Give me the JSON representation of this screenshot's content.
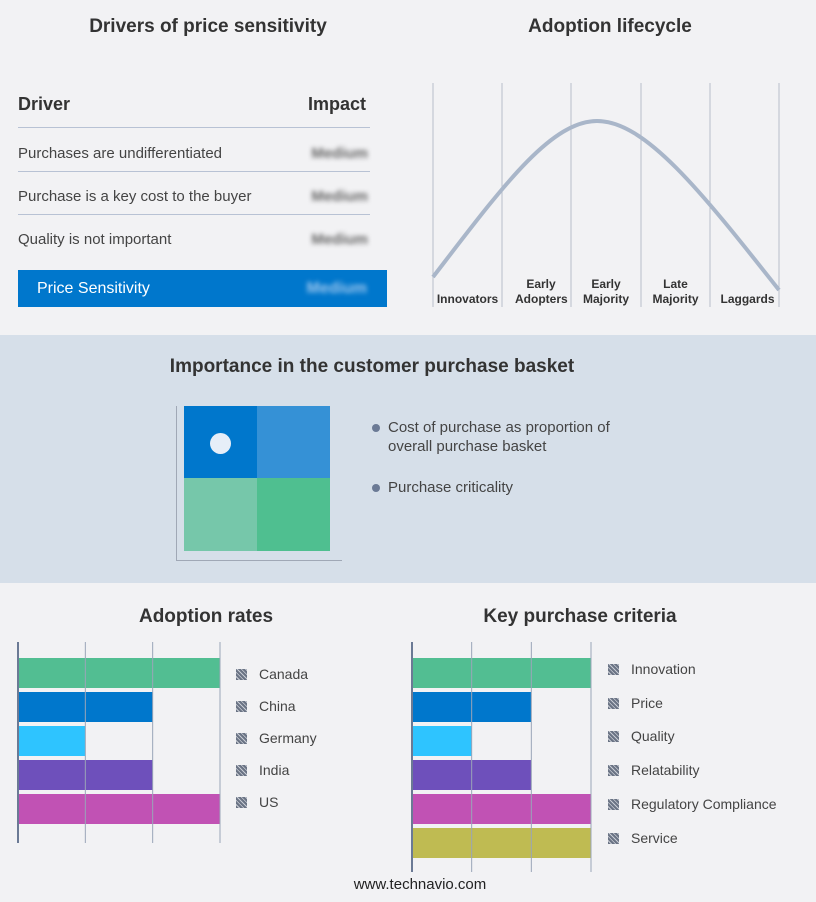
{
  "drivers": {
    "title": "Drivers of price sensitivity",
    "col_driver": "Driver",
    "col_impact": "Impact",
    "rows": [
      {
        "driver": "Purchases are undifferentiated",
        "impact": "Medium"
      },
      {
        "driver": "Purchase is a key cost to the buyer",
        "impact": "Medium"
      },
      {
        "driver": "Quality is not important",
        "impact": "Medium"
      }
    ],
    "summary": {
      "label": "Price Sensitivity",
      "impact": "Medium"
    },
    "accent": "#0077cc"
  },
  "lifecycle": {
    "title": "Adoption lifecycle",
    "stages": [
      "Innovators",
      "Early Adopters",
      "Early Majority",
      "Late Majority",
      "Laggards"
    ],
    "curve_color": "#a9b6c9"
  },
  "basket": {
    "title": "Importance in the customer purchase basket",
    "legend": [
      "Cost of purchase as proportion of overall purchase basket",
      "Purchase criticality"
    ],
    "colors": [
      "#0077cc",
      "#3591d6",
      "#76c7aa",
      "#4fbf90"
    ]
  },
  "chart_data": [
    {
      "type": "bar",
      "title": "Adoption rates",
      "categories": [
        "Canada",
        "China",
        "Germany",
        "India",
        "US"
      ],
      "values": [
        3,
        2,
        1,
        2,
        3
      ],
      "xlim": [
        0,
        3
      ],
      "grid": true,
      "legend": "right",
      "colors": [
        "#52be92",
        "#0077cc",
        "#2ec4ff",
        "#6e50bb",
        "#c152b4"
      ]
    },
    {
      "type": "bar",
      "title": "Key purchase criteria",
      "categories": [
        "Innovation",
        "Price",
        "Quality",
        "Relatability",
        "Regulatory Compliance",
        "Service"
      ],
      "values": [
        3,
        2,
        1,
        2,
        3,
        3
      ],
      "xlim": [
        0,
        3
      ],
      "grid": true,
      "legend": "right",
      "colors": [
        "#52be92",
        "#0077cc",
        "#2ec4ff",
        "#6e50bb",
        "#c152b4",
        "#bfbb52"
      ]
    }
  ],
  "footer": "www.technavio.com"
}
